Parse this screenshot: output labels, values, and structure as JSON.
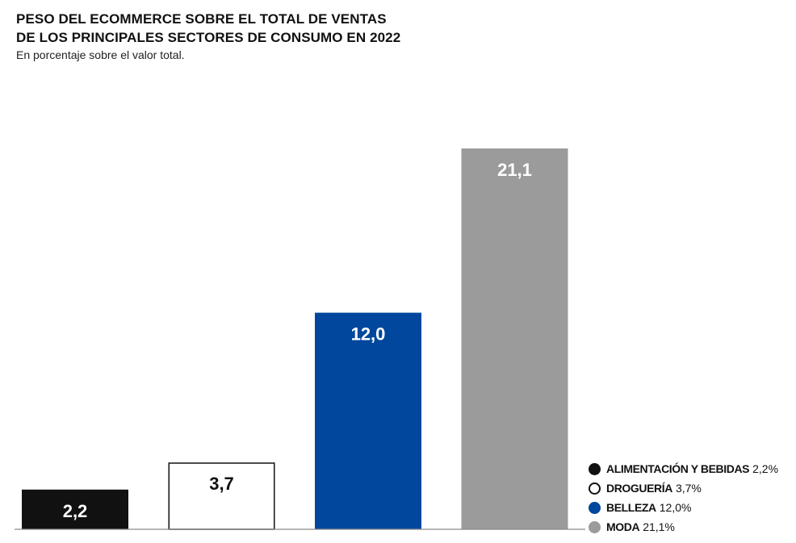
{
  "chart_data": {
    "type": "bar",
    "title_lines": [
      "PESO DEL ECOMMERCE SOBRE EL TOTAL DE VENTAS",
      "DE LOS PRINCIPALES SECTORES DE CONSUMO EN 2022"
    ],
    "subtitle": "En porcentaje sobre el valor total.",
    "categories": [
      "ALIMENTACIÓN Y BEBIDAS",
      "DROGUERÍA",
      "BELLEZA",
      "MODA"
    ],
    "values": [
      2.2,
      3.7,
      12.0,
      21.1
    ],
    "data_labels": [
      "2,2",
      "3,7",
      "12,0",
      "21,1"
    ],
    "legend_values": [
      "2,2%",
      "3,7%",
      "12,0%",
      "21,1%"
    ],
    "colors": [
      "#111111",
      "#ffffff",
      "#00479d",
      "#9b9b9b"
    ],
    "label_colors": [
      "#ffffff",
      "#111111",
      "#ffffff",
      "#ffffff"
    ],
    "ylim": [
      0,
      21.1
    ],
    "grid": false,
    "legend_position": "bottom-right"
  }
}
